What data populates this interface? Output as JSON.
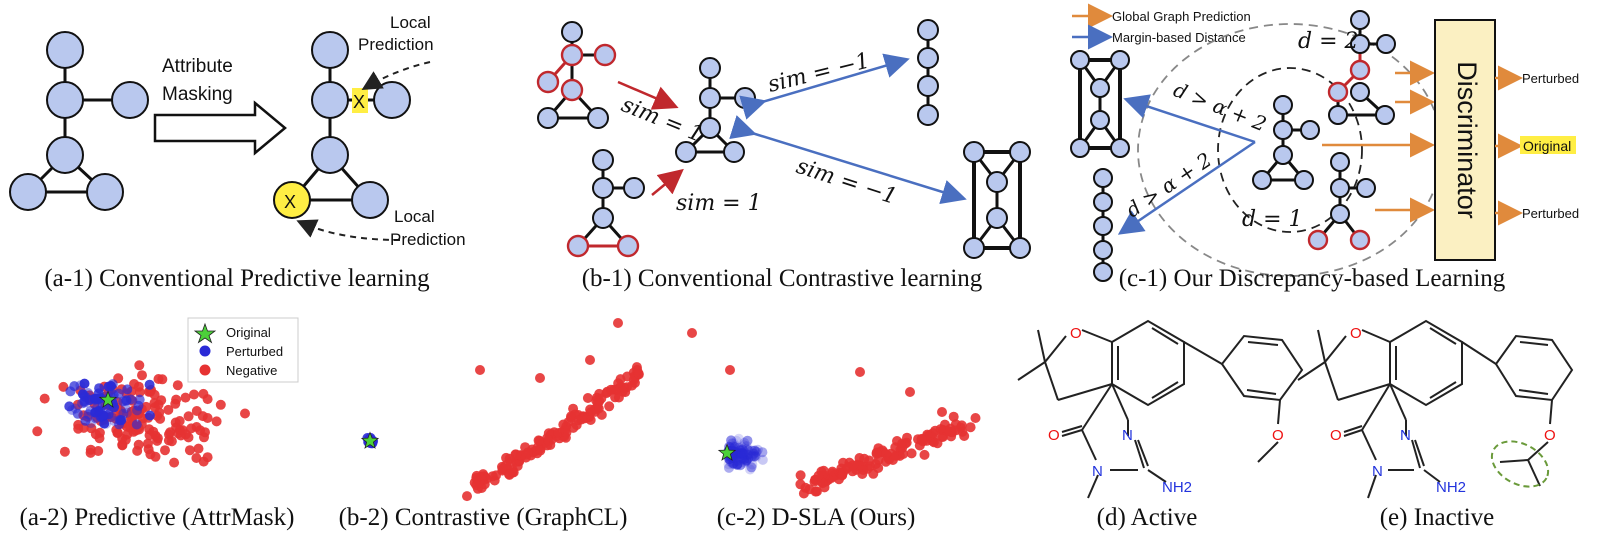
{
  "panel_a1": {
    "caption": "(a-1) Conventional Predictive learning",
    "arrow_label_line1": "Attribute",
    "arrow_label_line2": "Masking",
    "mask_symbol_1": "X",
    "mask_symbol_2": "X",
    "local_pred_1_line1": "Local",
    "local_pred_1_line2": "Prediction",
    "local_pred_2_line1": "Local",
    "local_pred_2_line2": "Prediction"
  },
  "panel_b1": {
    "caption": "(b-1) Conventional Contrastive learning",
    "sim_pos_1": "sim = 1",
    "sim_pos_2": "sim = 1",
    "sim_neg_1": "sim = −1",
    "sim_neg_2": "sim = −1"
  },
  "panel_c1": {
    "caption": "(c-1) Our Discrepancy-based Learning",
    "legend_global": "Global Graph Prediction",
    "legend_margin": "Margin-based Distance",
    "d2": "d = 2",
    "d1": "d = 1",
    "dalpha_1": "d > α + 2",
    "dalpha_2": "d > α + 2",
    "discriminator": "Discriminator",
    "out_perturbed_1": "Perturbed",
    "out_original": "Original",
    "out_perturbed_2": "Perturbed"
  },
  "scatter_legend": {
    "original": "Original",
    "perturbed": "Perturbed",
    "negative": "Negative"
  },
  "panel_a2": {
    "caption": "(a-2) Predictive (AttrMask)"
  },
  "panel_b2": {
    "caption": "(b-2) Contrastive (GraphCL)"
  },
  "panel_c2": {
    "caption": "(c-2) D-SLA (Ours)"
  },
  "panel_d": {
    "caption": "(d) Active",
    "atom_O1": "O",
    "atom_O2": "O",
    "atom_N1": "N",
    "atom_N2": "N",
    "atom_NH2": "NH2",
    "atom_O3": "O"
  },
  "panel_e": {
    "caption": "(e) Inactive",
    "atom_O1": "O",
    "atom_O2": "O",
    "atom_N1": "N",
    "atom_N2": "N",
    "atom_NH2": "NH2",
    "atom_O3": "O"
  },
  "colors": {
    "node_fill": "#b9c8ee",
    "red": "#c0282d",
    "blue_arrow": "#4a6fc0",
    "orange_arrow": "#e08a3c",
    "discriminator_fill": "#fbf0c2",
    "highlight": "#ffee44",
    "negative_dot": "#e63232",
    "perturbed_dot": "#2a2ad6",
    "original_star": "#4cd13a"
  }
}
